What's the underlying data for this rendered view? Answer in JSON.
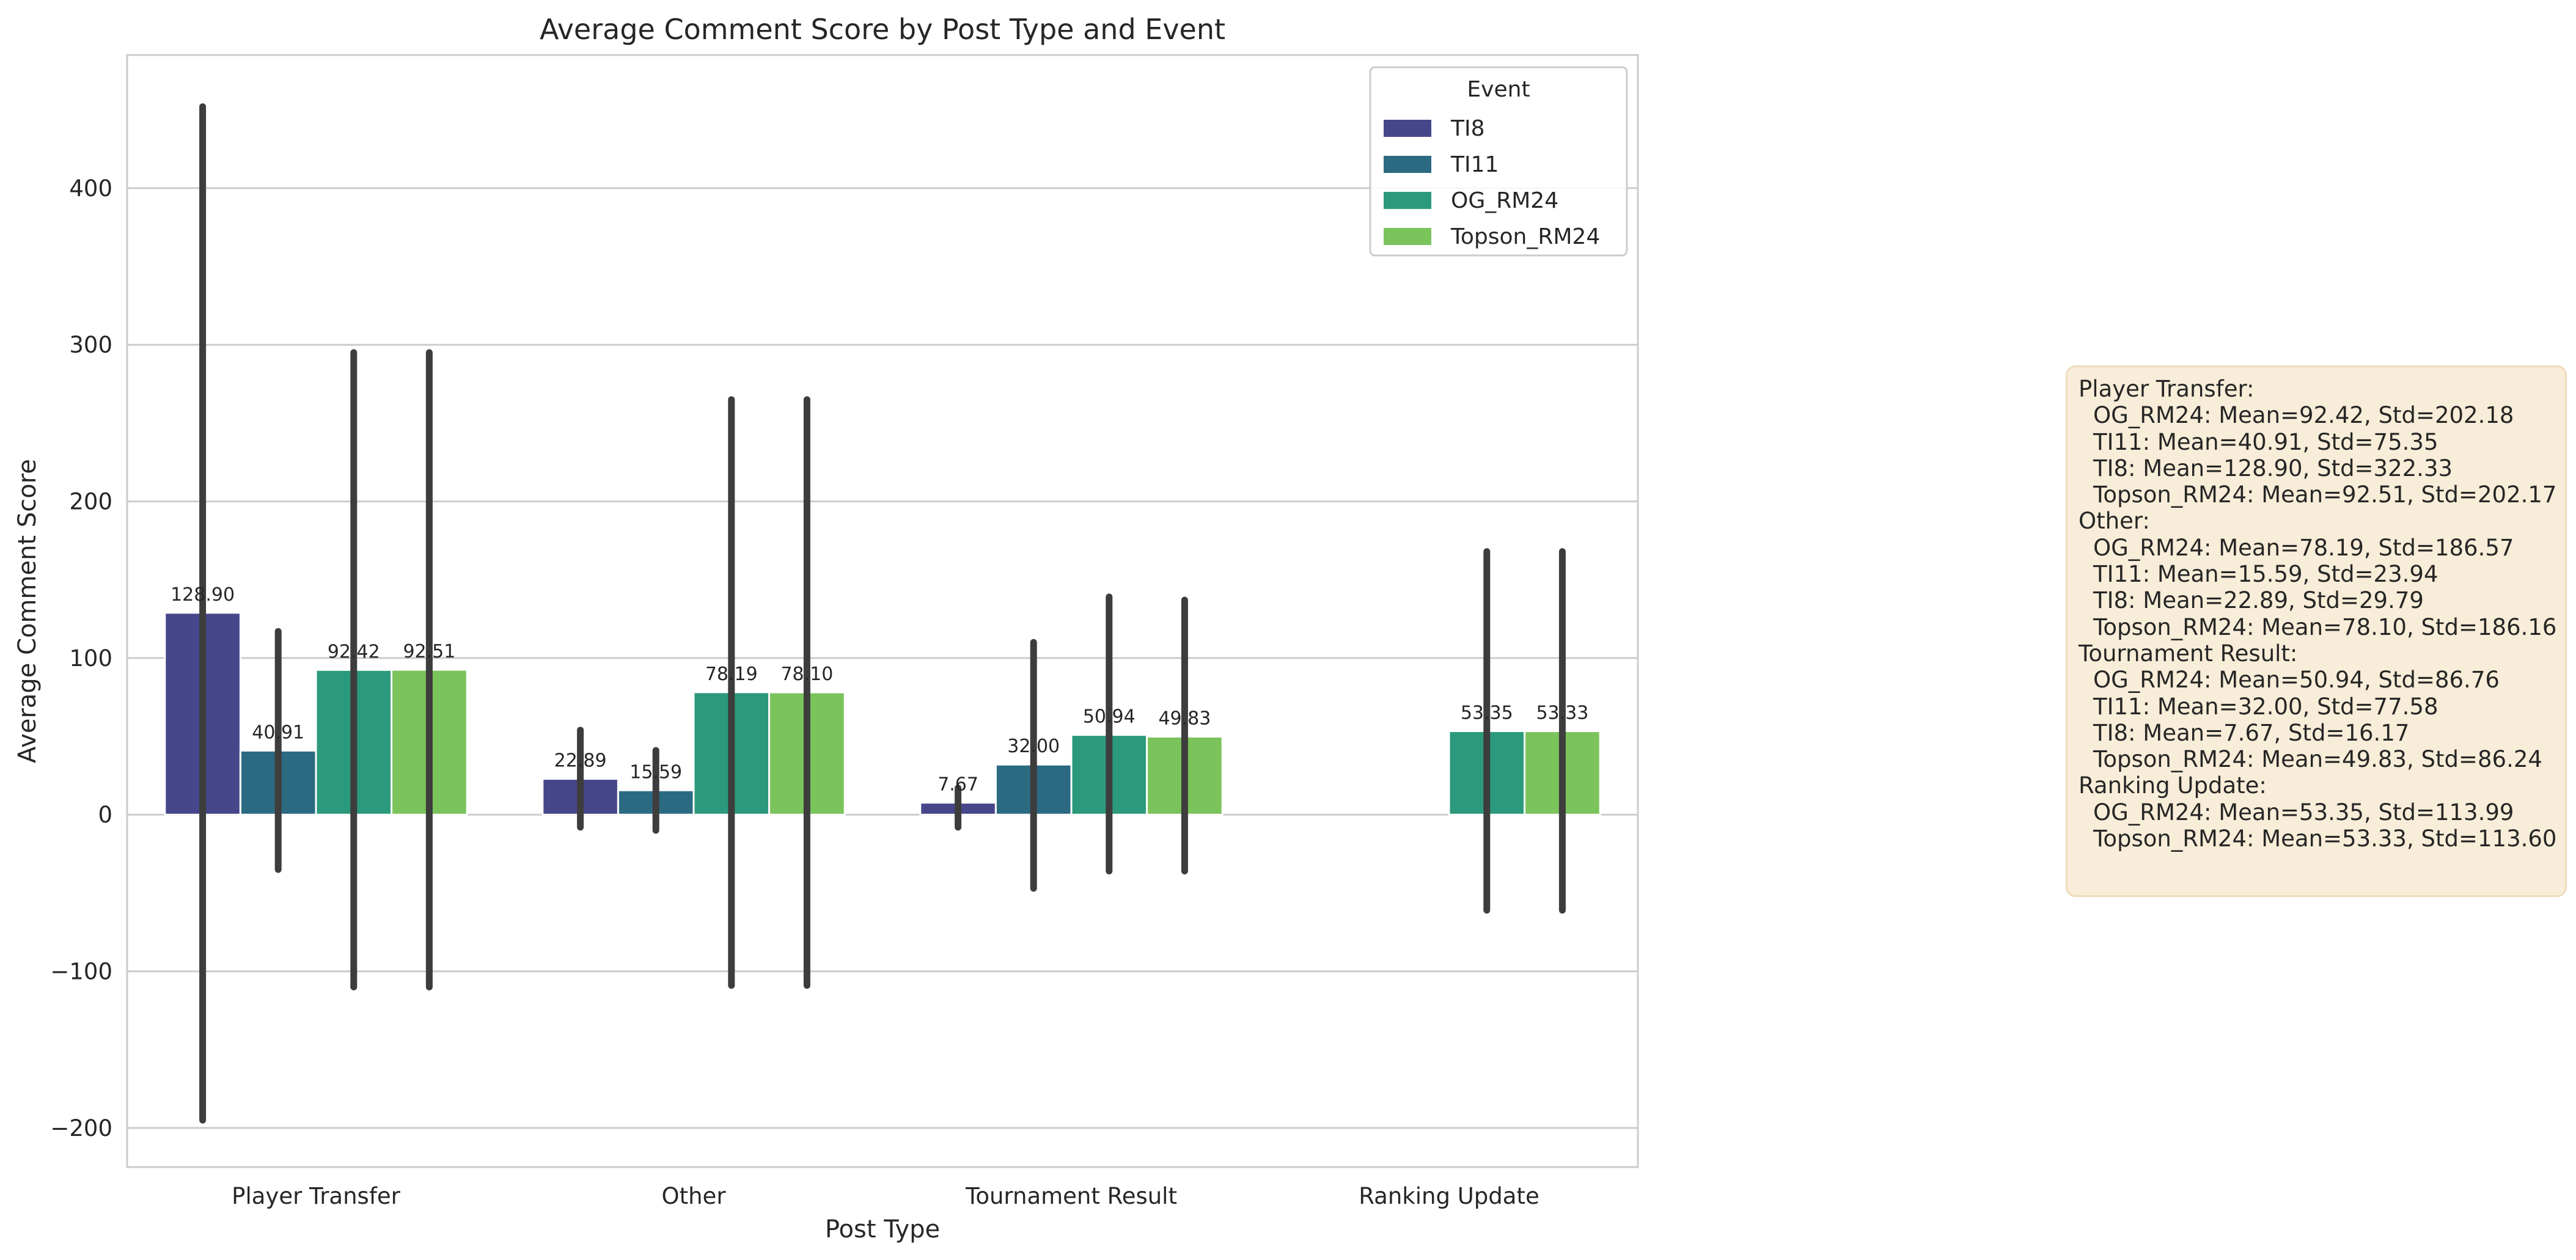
{
  "chart_data": {
    "type": "bar",
    "title": "Average Comment Score by Post Type and Event",
    "xlabel": "Post Type",
    "ylabel": "Average Comment Score",
    "ylim": [
      -225,
      485
    ],
    "yticks": [
      -200,
      -100,
      0,
      100,
      200,
      300,
      400
    ],
    "ytick_labels": [
      "−200",
      "−100",
      "0",
      "100",
      "200",
      "300",
      "400"
    ],
    "grid": true,
    "legend": {
      "title": "Event",
      "placement": "top-right"
    },
    "categories": [
      "Player Transfer",
      "Other",
      "Tournament Result",
      "Ranking Update"
    ],
    "series": [
      {
        "name": "TI8",
        "color": "#46478a",
        "values": [
          128.9,
          22.89,
          7.67,
          null
        ],
        "labels": [
          "128.90",
          "22.89",
          "7.67",
          null
        ],
        "err_low": [
          -195,
          -8,
          -8,
          null
        ],
        "err_high": [
          452,
          54,
          17,
          null
        ]
      },
      {
        "name": "TI11",
        "color": "#2c6a82",
        "values": [
          40.91,
          15.59,
          32.0,
          null
        ],
        "labels": [
          "40.91",
          "15.59",
          "32.00",
          null
        ],
        "err_low": [
          -35,
          -10,
          -47,
          null
        ],
        "err_high": [
          117,
          41,
          110,
          null
        ]
      },
      {
        "name": "OG_RM24",
        "color": "#2b9a7c",
        "values": [
          92.42,
          78.19,
          50.94,
          53.35
        ],
        "labels": [
          "92.42",
          "78.19",
          "50.94",
          "53.35"
        ],
        "err_low": [
          -110,
          -109,
          -36,
          -61
        ],
        "err_high": [
          295,
          265,
          139,
          168
        ]
      },
      {
        "name": "Topson_RM24",
        "color": "#7bc35b",
        "values": [
          92.51,
          78.1,
          49.83,
          53.33
        ],
        "labels": [
          "92.51",
          "78.10",
          "49.83",
          "53.33"
        ],
        "err_low": [
          -110,
          -109,
          -36,
          -61
        ],
        "err_high": [
          295,
          265,
          137,
          168
        ]
      }
    ]
  },
  "stats_box": {
    "lines": [
      {
        "text": "Player Transfer:",
        "sub": false
      },
      {
        "text": "OG_RM24: Mean=92.42, Std=202.18",
        "sub": true
      },
      {
        "text": "TI11: Mean=40.91, Std=75.35",
        "sub": true
      },
      {
        "text": "TI8: Mean=128.90, Std=322.33",
        "sub": true
      },
      {
        "text": "Topson_RM24: Mean=92.51, Std=202.17",
        "sub": true
      },
      {
        "text": "Other:",
        "sub": false
      },
      {
        "text": "OG_RM24: Mean=78.19, Std=186.57",
        "sub": true
      },
      {
        "text": "TI11: Mean=15.59, Std=23.94",
        "sub": true
      },
      {
        "text": "TI8: Mean=22.89, Std=29.79",
        "sub": true
      },
      {
        "text": "Topson_RM24: Mean=78.10, Std=186.16",
        "sub": true
      },
      {
        "text": "Tournament Result:",
        "sub": false
      },
      {
        "text": "OG_RM24: Mean=50.94, Std=86.76",
        "sub": true
      },
      {
        "text": "TI11: Mean=32.00, Std=77.58",
        "sub": true
      },
      {
        "text": "TI8: Mean=7.67, Std=16.17",
        "sub": true
      },
      {
        "text": "Topson_RM24: Mean=49.83, Std=86.24",
        "sub": true
      },
      {
        "text": "Ranking Update:",
        "sub": false
      },
      {
        "text": "OG_RM24: Mean=53.35, Std=113.99",
        "sub": true
      },
      {
        "text": "Topson_RM24: Mean=53.33, Std=113.60",
        "sub": true
      }
    ]
  }
}
